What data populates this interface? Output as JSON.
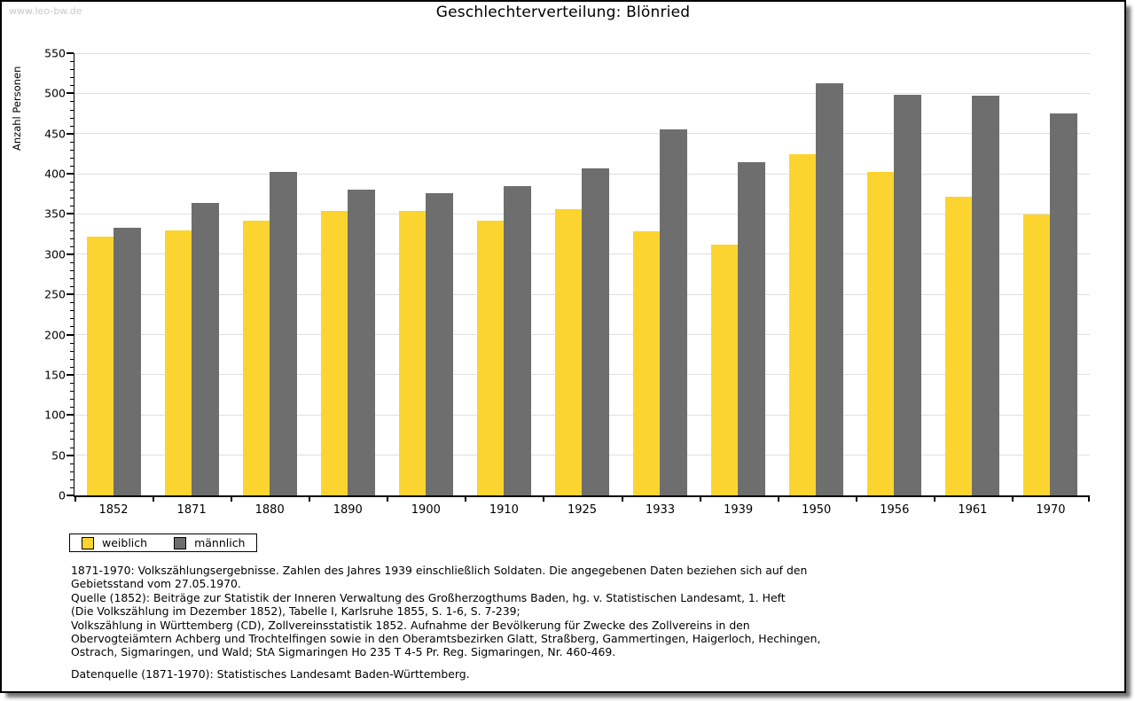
{
  "watermark": "www.leo-bw.de",
  "title": "Geschlechterverteilung: Blönried",
  "chart_data": {
    "type": "bar",
    "title": "Geschlechterverteilung: Blönried",
    "ylabel": "Anzahl Personen",
    "xlabel": "",
    "ylim": [
      0,
      550
    ],
    "ytick_step": 50,
    "y_minor_tick_step": 10,
    "grid": true,
    "legend_position": "bottom-left",
    "categories": [
      "1852",
      "1871",
      "1880",
      "1890",
      "1900",
      "1910",
      "1925",
      "1933",
      "1939",
      "1950",
      "1956",
      "1961",
      "1970"
    ],
    "series": [
      {
        "name": "weiblich",
        "color": "#FCD42F",
        "values": [
          322,
          330,
          342,
          354,
          354,
          342,
          356,
          328,
          312,
          424,
          402,
          371,
          349
        ]
      },
      {
        "name": "männlich",
        "color": "#6E6E6E",
        "values": [
          333,
          364,
          402,
          380,
          376,
          385,
          407,
          455,
          414,
          513,
          498,
          497,
          475
        ]
      }
    ]
  },
  "footnotes": {
    "lines": [
      "1871-1970: Volkszählungsergebnisse. Zahlen des Jahres 1939 einschließlich Soldaten. Die angegebenen Daten beziehen sich auf den",
      "Gebietsstand vom 27.05.1970.",
      "Quelle (1852): Beiträge zur Statistik der Inneren Verwaltung des Großherzogthums Baden, hg. v. Statistischen Landesamt, 1. Heft",
      "(Die Volkszählung im Dezember 1852), Tabelle I, Karlsruhe 1855, S. 1-6, S. 7-239;",
      "Volkszählung in Württemberg (CD), Zollvereinsstatistik 1852. Aufnahme der Bevölkerung für Zwecke des Zollvereins in den",
      "Obervogteiämtern Achberg und Trochtelfingen sowie in den Oberamtsbezirken Glatt, Straßberg, Gammertingen, Haigerloch, Hechingen,",
      "Ostrach, Sigmaringen, und Wald; StA Sigmaringen Ho 235 T 4-5 Pr. Reg. Sigmaringen, Nr. 460-469."
    ],
    "datasource": "Datenquelle (1871-1970): Statistisches Landesamt Baden-Württemberg."
  }
}
